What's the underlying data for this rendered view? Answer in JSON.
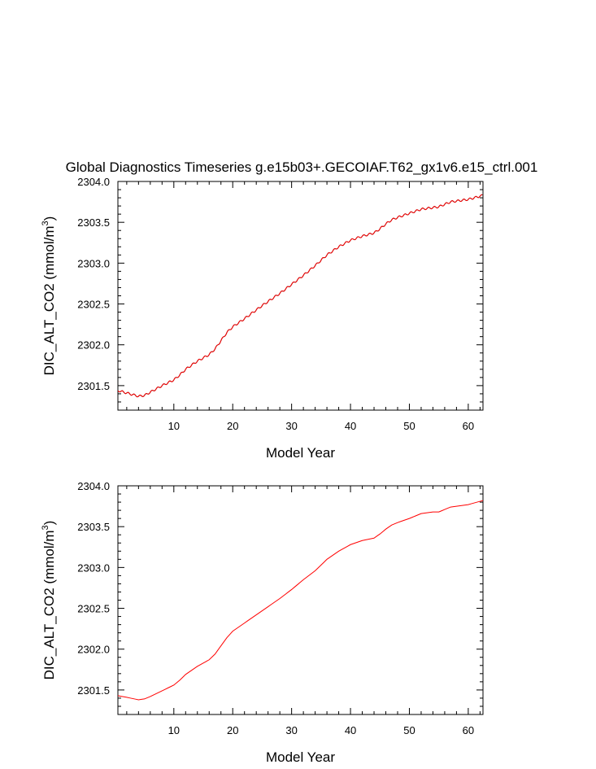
{
  "title": "Global Diagnostics Timeseries g.e15b03+.GECOIAF.T62_gx1v6.e15_ctrl.001",
  "chart_data": [
    {
      "type": "line",
      "xlabel": "Model Year",
      "ylabel_main": "DIC_ALT_CO2 (mmol/m",
      "ylabel_sup": "3",
      "ylabel_end": ")",
      "xlim": [
        0.5,
        62.5
      ],
      "ylim": [
        2301.2,
        2304.0
      ],
      "x_ticks": [
        10,
        20,
        30,
        40,
        50,
        60
      ],
      "y_ticks": [
        "2301.5",
        "2302.0",
        "2302.5",
        "2303.0",
        "2303.5",
        "2304.0"
      ],
      "grid": false,
      "seasonal_wiggle": true,
      "series": [
        {
          "color": "#000000",
          "x": [
            0.5,
            2,
            4,
            5,
            6,
            8,
            10,
            11,
            12,
            14,
            16,
            17,
            18,
            19,
            20,
            22,
            25,
            28,
            30,
            32,
            34,
            36,
            38,
            40,
            42,
            44,
            45,
            46,
            47,
            48,
            50,
            52,
            54,
            55,
            56,
            57,
            58,
            60,
            62,
            62.5
          ],
          "y": [
            2301.44,
            2301.41,
            2301.37,
            2301.38,
            2301.42,
            2301.5,
            2301.57,
            2301.63,
            2301.7,
            2301.8,
            2301.88,
            2301.95,
            2302.05,
            2302.15,
            2302.22,
            2302.32,
            2302.48,
            2302.63,
            2302.74,
            2302.85,
            2302.97,
            2303.1,
            2303.2,
            2303.28,
            2303.33,
            2303.37,
            2303.42,
            2303.48,
            2303.53,
            2303.56,
            2303.61,
            2303.66,
            2303.68,
            2303.69,
            2303.72,
            2303.75,
            2303.76,
            2303.78,
            2303.82,
            2303.83
          ]
        },
        {
          "color": "#ff0000",
          "x": [
            0.5,
            2,
            4,
            5,
            6,
            8,
            10,
            11,
            12,
            14,
            16,
            17,
            18,
            19,
            20,
            22,
            25,
            28,
            30,
            32,
            34,
            36,
            38,
            40,
            42,
            44,
            45,
            46,
            47,
            48,
            50,
            52,
            54,
            55,
            56,
            57,
            58,
            60,
            62,
            62.5
          ],
          "y": [
            2301.44,
            2301.41,
            2301.37,
            2301.38,
            2301.42,
            2301.5,
            2301.57,
            2301.63,
            2301.7,
            2301.8,
            2301.88,
            2301.95,
            2302.05,
            2302.15,
            2302.22,
            2302.32,
            2302.48,
            2302.63,
            2302.74,
            2302.85,
            2302.97,
            2303.1,
            2303.2,
            2303.28,
            2303.33,
            2303.37,
            2303.42,
            2303.48,
            2303.53,
            2303.56,
            2303.61,
            2303.66,
            2303.68,
            2303.69,
            2303.72,
            2303.75,
            2303.76,
            2303.78,
            2303.82,
            2303.83
          ]
        }
      ]
    },
    {
      "type": "line",
      "xlabel": "Model Year",
      "ylabel_main": "DIC_ALT_CO2 (mmol/m",
      "ylabel_sup": "3",
      "ylabel_end": ")",
      "xlim": [
        0.5,
        62.5
      ],
      "ylim": [
        2301.2,
        2304.0
      ],
      "x_ticks": [
        10,
        20,
        30,
        40,
        50,
        60
      ],
      "y_ticks": [
        "2301.5",
        "2302.0",
        "2302.5",
        "2303.0",
        "2303.5",
        "2304.0"
      ],
      "grid": false,
      "seasonal_wiggle": false,
      "series": [
        {
          "color": "#ff0000",
          "x": [
            0.5,
            2,
            4,
            5,
            6,
            8,
            10,
            11,
            12,
            14,
            16,
            17,
            18,
            19,
            20,
            22,
            25,
            28,
            30,
            32,
            34,
            36,
            38,
            40,
            42,
            44,
            45,
            46,
            47,
            48,
            50,
            52,
            54,
            55,
            56,
            57,
            58,
            60,
            62,
            62.5
          ],
          "y": [
            2301.43,
            2301.41,
            2301.38,
            2301.39,
            2301.42,
            2301.49,
            2301.56,
            2301.62,
            2301.69,
            2301.79,
            2301.87,
            2301.94,
            2302.04,
            2302.14,
            2302.22,
            2302.32,
            2302.47,
            2302.62,
            2302.73,
            2302.85,
            2302.96,
            2303.1,
            2303.2,
            2303.28,
            2303.33,
            2303.36,
            2303.41,
            2303.47,
            2303.52,
            2303.55,
            2303.6,
            2303.66,
            2303.68,
            2303.68,
            2303.71,
            2303.74,
            2303.75,
            2303.77,
            2303.81,
            2303.82
          ]
        }
      ]
    }
  ]
}
